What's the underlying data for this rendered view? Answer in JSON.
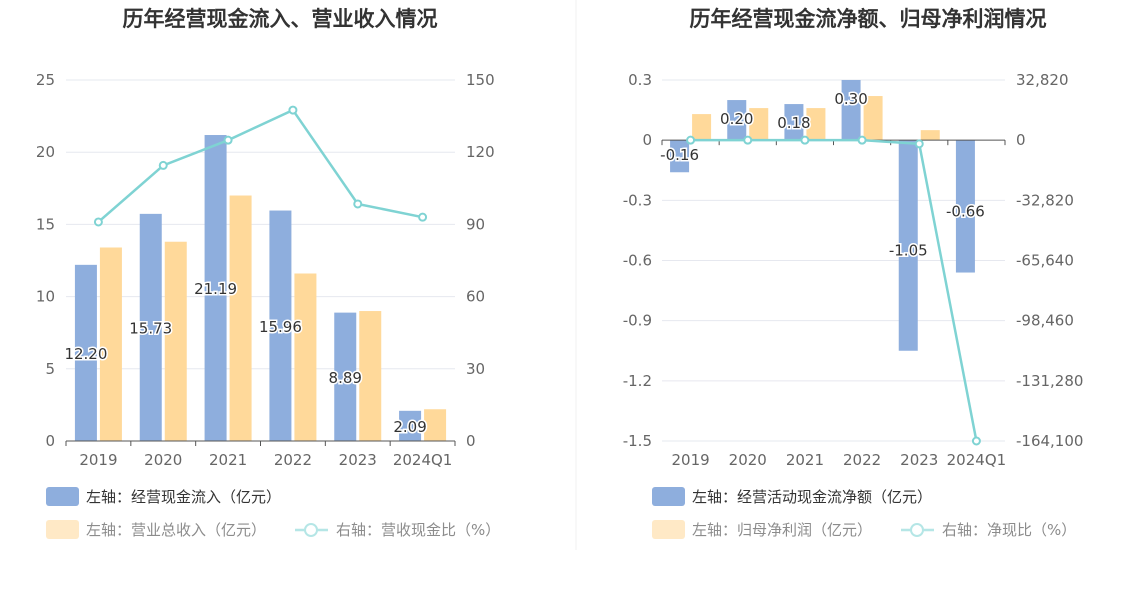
{
  "colors": {
    "bar_blue": "#8eaedd",
    "bar_yellow": "#ffd99a",
    "line": "#7fd3d3",
    "grid": "#e6e8ef",
    "axis": "#555555"
  },
  "chart_data": [
    {
      "type": "bar",
      "title": "历年经营现金流入、营业收入情况",
      "categories": [
        "2019",
        "2020",
        "2021",
        "2022",
        "2023",
        "2024Q1"
      ],
      "left_axis": {
        "ylim": [
          0,
          25
        ],
        "ticks": [
          "0",
          "5",
          "10",
          "15",
          "20",
          "25"
        ]
      },
      "right_axis": {
        "ylim": [
          0,
          150
        ],
        "ticks": [
          "0",
          "30",
          "60",
          "90",
          "120",
          "150"
        ]
      },
      "series": [
        {
          "name": "左轴：经营现金流入（亿元）",
          "axis": "left",
          "kind": "bar",
          "values": [
            12.2,
            15.73,
            21.19,
            15.96,
            8.89,
            2.09
          ],
          "labels": [
            "12.20",
            "15.73",
            "21.19",
            "15.96",
            "8.89",
            "2.09"
          ]
        },
        {
          "name": "左轴：营业总收入（亿元）",
          "axis": "left",
          "kind": "bar",
          "values": [
            13.4,
            13.8,
            17.0,
            11.6,
            9.0,
            2.2
          ]
        },
        {
          "name": "右轴：营收现金比（%）",
          "axis": "right",
          "kind": "line",
          "values": [
            91,
            114.5,
            125,
            137.5,
            98.5,
            93
          ]
        }
      ],
      "legend_placement": "bottom-left",
      "grid": true
    },
    {
      "type": "bar",
      "title": "历年经营现金流净额、归母净利润情况",
      "categories": [
        "2019",
        "2020",
        "2021",
        "2022",
        "2023",
        "2024Q1"
      ],
      "left_axis": {
        "ylim": [
          -1.5,
          0.3
        ],
        "ticks": [
          "0.3",
          "0",
          "-0.3",
          "-0.6",
          "-0.9",
          "-1.2",
          "-1.5"
        ]
      },
      "right_axis": {
        "ylim": [
          -164100,
          32820
        ],
        "ticks": [
          "32,820",
          "0",
          "-32,820",
          "-65,640",
          "-98,460",
          "-131,280",
          "-164,100"
        ]
      },
      "series": [
        {
          "name": "左轴：经营活动现金流净额（亿元）",
          "axis": "left",
          "kind": "bar",
          "values": [
            -0.16,
            0.2,
            0.18,
            0.3,
            -1.05,
            -0.66
          ],
          "labels": [
            "-0.16",
            "0.20",
            "0.18",
            "0.30",
            "-1.05",
            "-0.66"
          ]
        },
        {
          "name": "左轴：归母净利润（亿元）",
          "axis": "left",
          "kind": "bar",
          "values": [
            0.13,
            0.16,
            0.16,
            0.22,
            0.05,
            0.0
          ]
        },
        {
          "name": "右轴：净现比（%）",
          "axis": "right",
          "kind": "line",
          "values": [
            0,
            0,
            0,
            0,
            -2000,
            -164100
          ]
        }
      ],
      "legend_placement": "bottom-left",
      "grid": true
    }
  ]
}
